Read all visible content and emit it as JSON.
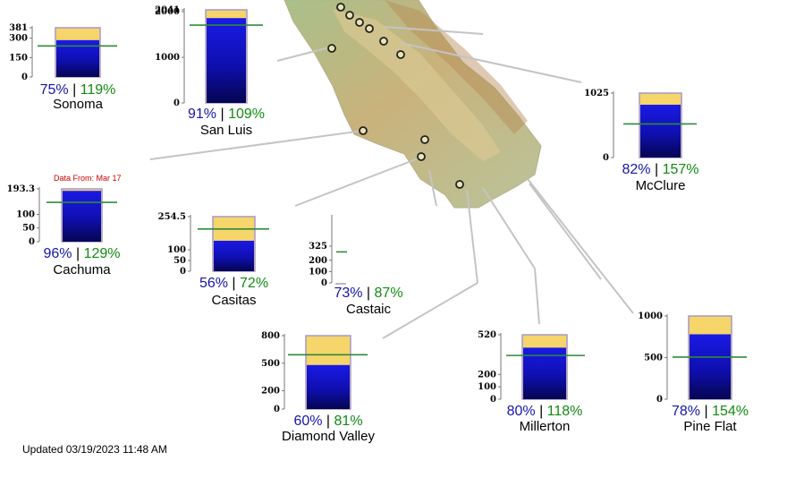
{
  "updated_text": "Updated 03/19/2023 11:48 AM",
  "colors": {
    "storage_bar": "#1a1ad8",
    "capacity_bar": "#f6d56a",
    "historical_avg_line": "#2e8b3a",
    "capacity_pct_text": "#1515a8",
    "avg_pct_text": "#118a11",
    "note_text": "#d00000"
  },
  "chart_data": [
    {
      "type": "bar",
      "name": "Sonoma",
      "capacity": 381,
      "storage": 285,
      "historical_avg": 240,
      "ticks": [
        0,
        150,
        300,
        381
      ],
      "pct_capacity": "75%",
      "pct_avg": "119%"
    },
    {
      "type": "bar",
      "name": "San Luis",
      "capacity": 2041,
      "storage": 1860,
      "historical_avg": 1706,
      "ticks": [
        0,
        1000,
        2000,
        2041
      ],
      "pct_capacity": "91%",
      "pct_avg": "109%"
    },
    {
      "type": "bar",
      "name": "McClure",
      "capacity": 1025,
      "storage": 840,
      "historical_avg": 535,
      "ticks": [
        0,
        1025
      ],
      "pct_capacity": "82%",
      "pct_avg": "157%"
    },
    {
      "type": "bar",
      "name": "Cachuma",
      "capacity": 193.3,
      "storage": 186,
      "historical_avg": 144,
      "ticks": [
        0,
        50,
        100,
        193.3
      ],
      "tick_labels": [
        "0",
        "50",
        "100",
        "193.3"
      ],
      "pct_capacity": "96%",
      "pct_avg": "129%",
      "note": "Data From: Mar 17"
    },
    {
      "type": "bar",
      "name": "Casitas",
      "capacity": 254.5,
      "storage": 142,
      "historical_avg": 197,
      "ticks": [
        0,
        50,
        100,
        254.5
      ],
      "tick_labels": [
        "0",
        "50",
        "100",
        "254.5"
      ],
      "pct_capacity": "56%",
      "pct_avg": "72%"
    },
    {
      "type": "bar",
      "name": "Castaic",
      "capacity": 325,
      "storage": 0,
      "historical_avg": 274,
      "ticks": [
        0,
        100,
        200,
        325
      ],
      "pct_capacity": "73%",
      "pct_avg": "87%",
      "bars_visible": false
    },
    {
      "type": "bar",
      "name": "Diamond Valley",
      "capacity": 800,
      "storage": 480,
      "historical_avg": 592,
      "ticks": [
        0,
        200,
        500,
        800
      ],
      "pct_capacity": "60%",
      "pct_avg": "81%"
    },
    {
      "type": "bar",
      "name": "Millerton",
      "capacity": 520,
      "storage": 416,
      "historical_avg": 353,
      "ticks": [
        0,
        100,
        200,
        520
      ],
      "pct_capacity": "80%",
      "pct_avg": "118%"
    },
    {
      "type": "bar",
      "name": "Pine Flat",
      "capacity": 1000,
      "storage": 780,
      "historical_avg": 506,
      "ticks": [
        0,
        500,
        1000
      ],
      "pct_capacity": "78%",
      "pct_avg": "154%"
    }
  ]
}
